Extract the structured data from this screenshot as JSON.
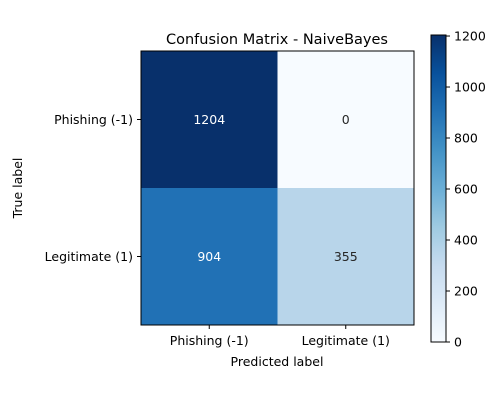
{
  "chart_data": {
    "type": "heatmap",
    "title": "Confusion Matrix - NaiveBayes",
    "xlabel": "Predicted label",
    "ylabel": "True label",
    "x_categories": [
      "Phishing (-1)",
      "Legitimate (1)"
    ],
    "y_categories": [
      "Phishing (-1)",
      "Legitimate (1)"
    ],
    "values": [
      [
        1204,
        0
      ],
      [
        904,
        355
      ]
    ],
    "colorbar": {
      "colormap": "Blues",
      "range": [
        0,
        1204
      ],
      "ticks": [
        0,
        200,
        400,
        600,
        800,
        1000,
        1200
      ]
    },
    "cell_text_colors": {
      "dark": "#ffffff",
      "light": "#262626"
    }
  }
}
